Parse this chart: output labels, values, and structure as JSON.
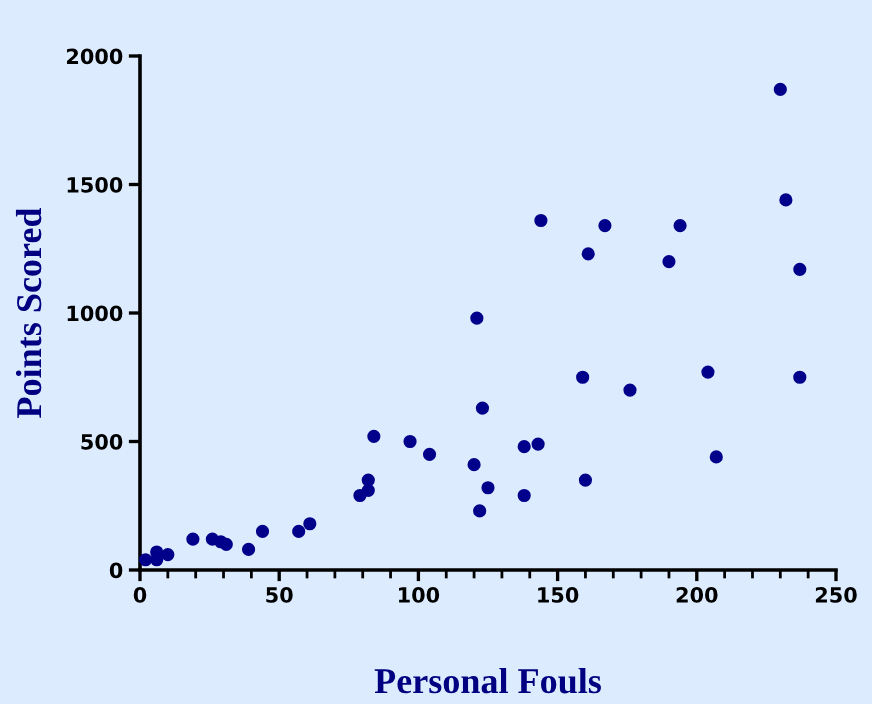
{
  "chart_data": {
    "type": "scatter",
    "xlabel": "Personal Fouls",
    "ylabel": "Points Scored",
    "series": [
      {
        "color": "#00008b",
        "x": [
          2,
          6,
          6,
          10,
          19,
          26,
          29,
          31,
          39,
          44,
          57,
          61,
          79,
          82,
          82,
          84,
          97,
          104,
          120,
          121,
          123,
          125,
          122,
          230,
          232,
          237,
          237,
          144,
          167,
          194,
          161,
          190,
          204,
          159,
          176,
          138,
          143,
          207,
          160,
          138
        ],
        "values": [
          40,
          70,
          40,
          60,
          120,
          120,
          110,
          100,
          80,
          150,
          150,
          180,
          290,
          310,
          350,
          520,
          500,
          450,
          410,
          980,
          630,
          320,
          230,
          1870,
          1440,
          1170,
          750,
          1360,
          1340,
          1340,
          1230,
          1200,
          770,
          750,
          700,
          480,
          490,
          440,
          350,
          290
        ]
      }
    ],
    "xlim": [
      0,
      250
    ],
    "xticks": [
      0,
      50,
      100,
      150,
      200,
      250
    ],
    "ylim": [
      0,
      2000
    ],
    "yticks": [
      0,
      500,
      1000,
      1500,
      2000
    ],
    "marker": "circle",
    "grid": false,
    "legend": false
  }
}
